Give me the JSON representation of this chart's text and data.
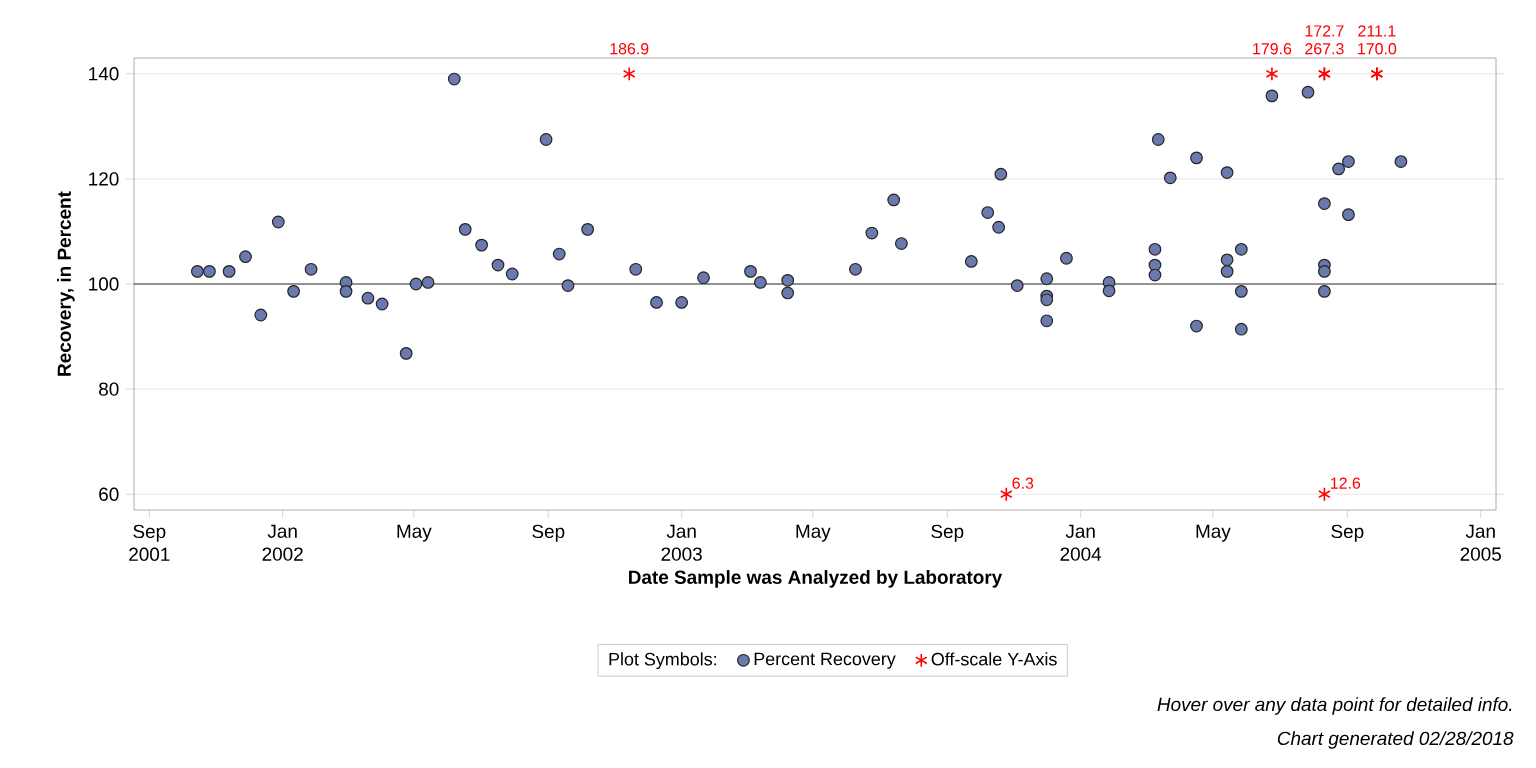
{
  "chart_data": {
    "type": "scatter",
    "xlabel": "Date Sample was Analyzed by Laboratory",
    "ylabel": "Recovery, in Percent",
    "legend_title": "Plot Symbols:",
    "legend": "bottom",
    "grid": "y",
    "xlim": [
      "2001-08-18",
      "2005-01-15"
    ],
    "ylim": [
      57,
      143
    ],
    "xticks": [
      {
        "value": "2001-09-01",
        "label": "Sep 2001"
      },
      {
        "value": "2002-01-01",
        "label": "Jan 2002"
      },
      {
        "value": "2002-05-01",
        "label": "May"
      },
      {
        "value": "2002-09-01",
        "label": "Sep"
      },
      {
        "value": "2003-01-01",
        "label": "Jan 2003"
      },
      {
        "value": "2003-05-01",
        "label": "May"
      },
      {
        "value": "2003-09-01",
        "label": "Sep"
      },
      {
        "value": "2004-01-01",
        "label": "Jan 2004"
      },
      {
        "value": "2004-05-01",
        "label": "May"
      },
      {
        "value": "2004-09-01",
        "label": "Sep"
      },
      {
        "value": "2005-01-01",
        "label": "Jan 2005"
      }
    ],
    "yticks": [
      60,
      80,
      100,
      120,
      140
    ],
    "ref_lines": [
      {
        "axis": "y",
        "value": 100,
        "color": "#000000"
      }
    ],
    "annotations": [
      "Hover over any data point for detailed info.",
      "Chart generated 02/28/2018",
      {
        "text": "186.9",
        "x": "2002-11-14",
        "y": 140
      },
      {
        "text": "6.3",
        "x": "2003-10-25",
        "y": 60
      },
      {
        "text": "179.6",
        "x": "2004-06-24",
        "y": 140
      },
      {
        "text": "267.3",
        "x": "2004-08-11",
        "y": 140
      },
      {
        "text": "172.7",
        "x": "2004-08-11",
        "y": 140
      },
      {
        "text": "12.6",
        "x": "2004-08-11",
        "y": 60
      },
      {
        "text": "170.0",
        "x": "2004-09-28",
        "y": 140
      },
      {
        "text": "211.1",
        "x": "2004-09-28",
        "y": 140
      }
    ],
    "series": [
      {
        "name": "Percent Recovery",
        "type": "scatter",
        "marker": "circle",
        "color": "#6b7aae",
        "x": [
          "2001-10-15",
          "2001-10-26",
          "2001-11-13",
          "2001-11-28",
          "2001-12-12",
          "2001-12-28",
          "2002-01-11",
          "2002-01-27",
          "2002-02-28",
          "2002-02-28",
          "2002-03-20",
          "2002-04-02",
          "2002-04-24",
          "2002-05-03",
          "2002-05-14",
          "2002-06-07",
          "2002-06-17",
          "2002-07-02",
          "2002-07-17",
          "2002-07-30",
          "2002-08-30",
          "2002-09-11",
          "2002-09-19",
          "2002-10-07",
          "2002-11-20",
          "2002-12-09",
          "2003-01-01",
          "2003-01-21",
          "2003-03-05",
          "2003-03-14",
          "2003-04-08",
          "2003-04-08",
          "2003-06-09",
          "2003-06-24",
          "2003-07-14",
          "2003-07-21",
          "2003-09-23",
          "2003-10-08",
          "2003-10-18",
          "2003-10-20",
          "2003-11-04",
          "2003-12-01",
          "2003-12-01",
          "2003-12-01",
          "2003-12-01",
          "2003-12-19",
          "2004-01-27",
          "2004-01-27",
          "2004-03-09",
          "2004-03-09",
          "2004-03-09",
          "2004-03-12",
          "2004-03-23",
          "2004-04-16",
          "2004-04-16",
          "2004-05-14",
          "2004-05-14",
          "2004-05-14",
          "2004-05-27",
          "2004-05-27",
          "2004-05-27",
          "2004-06-24",
          "2004-07-27",
          "2004-08-11",
          "2004-08-11",
          "2004-08-11",
          "2004-08-11",
          "2004-08-24",
          "2004-09-02",
          "2004-09-02",
          "2004-10-20"
        ],
        "values": [
          102.4,
          102.4,
          102.4,
          105.2,
          94.1,
          111.8,
          98.6,
          102.8,
          100.3,
          98.6,
          97.3,
          96.2,
          86.8,
          100.0,
          100.3,
          139.0,
          110.4,
          107.4,
          103.6,
          101.9,
          127.5,
          105.7,
          99.7,
          110.4,
          102.8,
          96.5,
          96.5,
          101.2,
          102.4,
          100.3,
          100.7,
          98.3,
          102.8,
          109.7,
          116.0,
          107.7,
          104.3,
          113.6,
          110.8,
          120.9,
          99.7,
          101.0,
          97.7,
          97.0,
          93.0,
          104.9,
          100.3,
          98.7,
          106.6,
          103.6,
          101.7,
          127.5,
          120.2,
          124.0,
          92.0,
          121.2,
          104.6,
          102.4,
          106.6,
          98.6,
          91.4,
          135.8,
          136.5,
          115.3,
          103.6,
          102.4,
          98.6,
          121.9,
          123.3,
          113.2,
          123.3
        ]
      },
      {
        "name": "Off-scale Y-Axis",
        "type": "scatter",
        "marker": "cross",
        "color": "#ff0000",
        "x": [
          "2002-11-14",
          "2003-10-25",
          "2004-06-24",
          "2004-08-11",
          "2004-08-11",
          "2004-08-11",
          "2004-09-28",
          "2004-09-28"
        ],
        "values": [
          140,
          60,
          140,
          140,
          140,
          60,
          140,
          140
        ]
      }
    ]
  }
}
